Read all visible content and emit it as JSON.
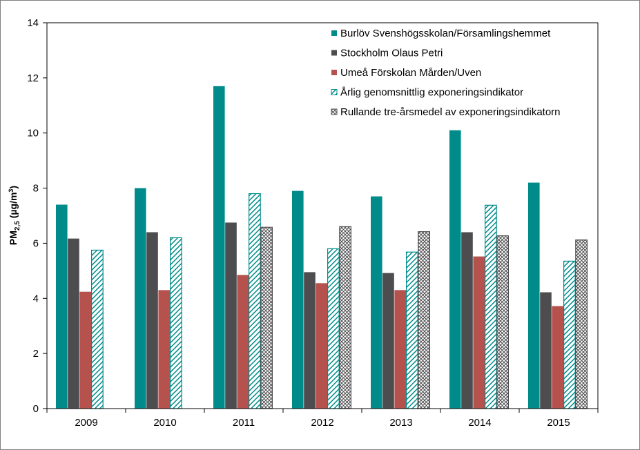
{
  "chart_data": {
    "type": "bar",
    "ylabel": {
      "main": "PM",
      "sub": "2,5",
      "unit_open": "(µg/m",
      "unit_sup": "3",
      "unit_close": ")"
    },
    "ylim": [
      0,
      14
    ],
    "yticks": [
      0,
      2,
      4,
      6,
      8,
      10,
      12,
      14
    ],
    "categories": [
      "2009",
      "2010",
      "2011",
      "2012",
      "2013",
      "2014",
      "2015"
    ],
    "legend_position": "top-right",
    "series": [
      {
        "name": "Burlöv Svenshögsskolan/Församlingshemmet",
        "color": "#008b8b",
        "pattern": "solid",
        "values": [
          7.4,
          8.0,
          11.7,
          7.9,
          7.7,
          10.1,
          8.2
        ]
      },
      {
        "name": "Stockholm Olaus Petri",
        "color": "#4d4d4f",
        "pattern": "solid",
        "values": [
          6.17,
          6.4,
          6.75,
          4.95,
          4.92,
          6.4,
          4.22
        ]
      },
      {
        "name": "Umeå Förskolan Mården/Uven",
        "color": "#b5524d",
        "pattern": "solid",
        "values": [
          4.24,
          4.3,
          4.85,
          4.55,
          4.3,
          5.52,
          3.72
        ]
      },
      {
        "name": "Årlig genomsnittlig exponeringsindikator",
        "color": "#008b8b",
        "pattern": "diagonal",
        "values": [
          5.75,
          6.2,
          7.8,
          5.8,
          5.68,
          7.38,
          5.35
        ]
      },
      {
        "name": "Rullande tre-årsmedel av exponeringsindikatorn",
        "color": "#4d4d4f",
        "pattern": "crosshatch",
        "values": [
          null,
          null,
          6.58,
          6.6,
          6.42,
          6.27,
          6.12
        ]
      }
    ]
  }
}
